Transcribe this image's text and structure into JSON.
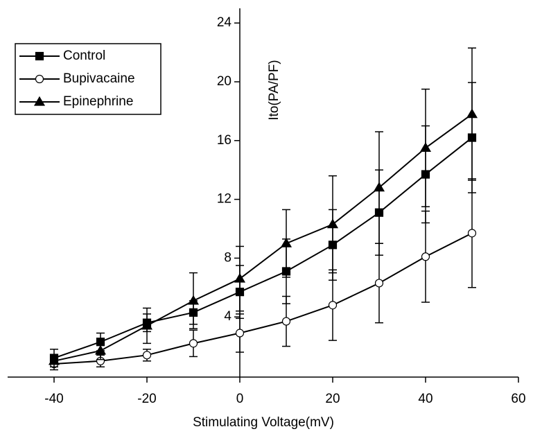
{
  "chart_data": {
    "type": "line",
    "xlabel": "Stimulating Voltage(mV)",
    "ylabel": "Ito(PA/PF)",
    "x": [
      -40,
      -30,
      -20,
      -10,
      0,
      10,
      20,
      30,
      40,
      50
    ],
    "xlim": [
      -50,
      60
    ],
    "xticks": [
      -40,
      -20,
      0,
      20,
      40,
      60
    ],
    "ylim": [
      0,
      25
    ],
    "yticks": [
      4,
      8,
      12,
      16,
      20,
      24
    ],
    "legend": "upper left",
    "series": [
      {
        "name": "Control",
        "color": "#000000",
        "marker": "square",
        "values": [
          1.2,
          2.3,
          3.6,
          4.3,
          5.7,
          7.1,
          8.9,
          11.1,
          13.7,
          16.2
        ],
        "errors": [
          0.6,
          0.6,
          0.6,
          0.8,
          1.8,
          2.2,
          2.4,
          2.9,
          3.3,
          3.75
        ]
      },
      {
        "name": "Bupivacaine",
        "color": "#000000",
        "marker": "circle-open",
        "values": [
          0.8,
          1.0,
          1.4,
          2.2,
          2.9,
          3.7,
          4.8,
          6.3,
          8.1,
          9.7
        ],
        "errors": [
          0.4,
          0.4,
          0.4,
          0.9,
          1.3,
          1.7,
          2.4,
          2.7,
          3.1,
          3.7
        ]
      },
      {
        "name": "Epinephrine",
        "color": "#000000",
        "marker": "triangle",
        "values": [
          1.0,
          1.7,
          3.4,
          5.1,
          6.6,
          9.0,
          10.3,
          12.8,
          15.5,
          17.8
        ],
        "errors": [
          0.4,
          0.6,
          1.2,
          1.9,
          2.2,
          2.3,
          3.3,
          3.8,
          4.0,
          4.5
        ]
      }
    ]
  }
}
